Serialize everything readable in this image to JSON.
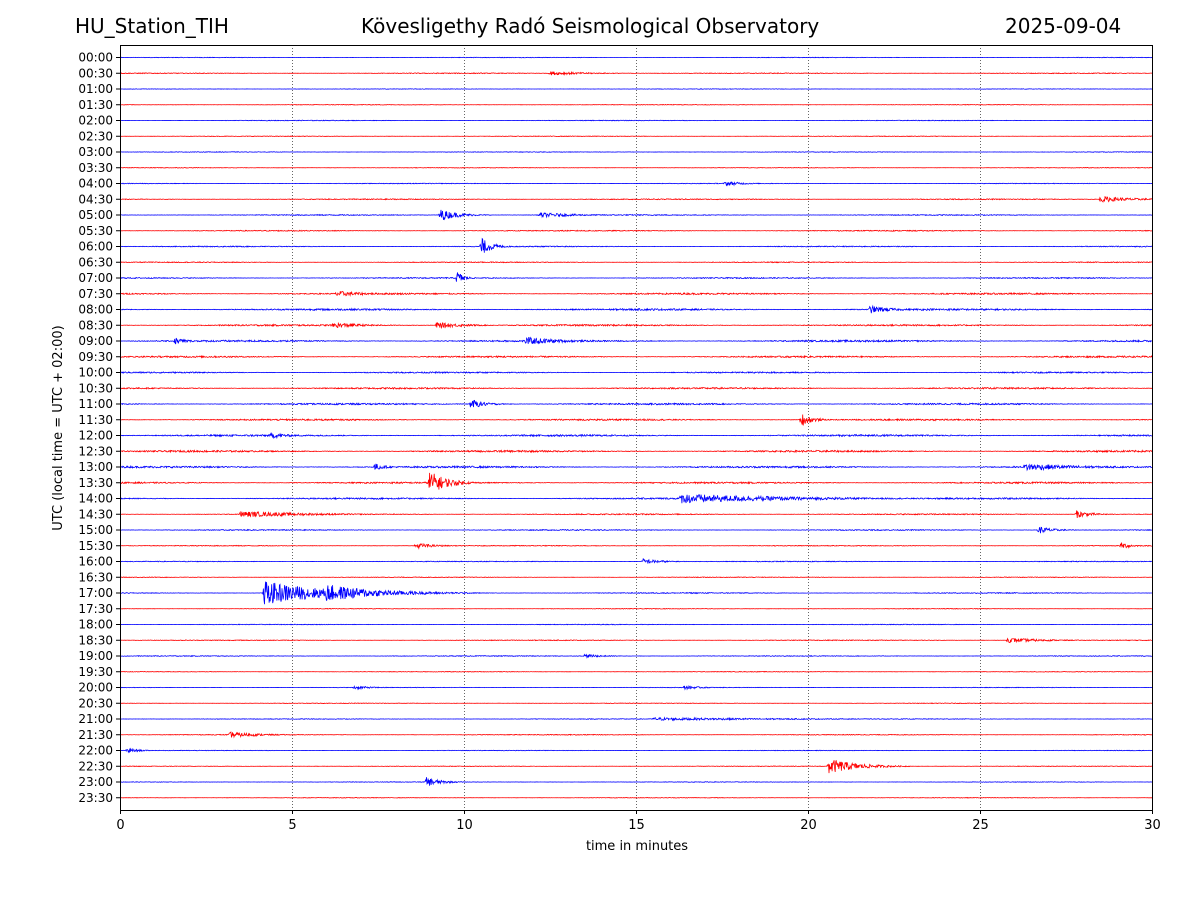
{
  "header": {
    "station": "HU_Station_TIH",
    "observatory": "Kövesligethy Radó Seismological Observatory",
    "date": "2025-09-04"
  },
  "chart_data": {
    "type": "line",
    "title": "Kövesligethy Radó Seismological Observatory",
    "xlabel": "time in minutes",
    "ylabel": "UTC (local time = UTC + 02:00)",
    "xlim": [
      0,
      30
    ],
    "xticks": [
      0,
      5,
      10,
      15,
      20,
      25,
      30
    ],
    "grid": "vertical dotted at 5-minute ticks",
    "colors": [
      "#0000ff",
      "#ff0000"
    ],
    "rows": [
      "00:00",
      "00:30",
      "01:00",
      "01:30",
      "02:00",
      "02:30",
      "03:00",
      "03:30",
      "04:00",
      "04:30",
      "05:00",
      "05:30",
      "06:00",
      "06:30",
      "07:00",
      "07:30",
      "08:00",
      "08:30",
      "09:00",
      "09:30",
      "10:00",
      "10:30",
      "11:00",
      "11:30",
      "12:00",
      "12:30",
      "13:00",
      "13:30",
      "14:00",
      "14:30",
      "15:00",
      "15:30",
      "16:00",
      "16:30",
      "17:00",
      "17:30",
      "18:00",
      "18:30",
      "19:00",
      "19:30",
      "20:00",
      "20:30",
      "21:00",
      "21:30",
      "22:00",
      "22:30",
      "23:00",
      "23:30"
    ],
    "noise": [
      0.3,
      0.4,
      0.25,
      0.3,
      0.35,
      0.3,
      0.3,
      0.3,
      0.35,
      0.5,
      0.5,
      0.5,
      0.5,
      0.45,
      0.55,
      0.8,
      0.9,
      0.8,
      0.9,
      0.8,
      0.7,
      0.8,
      0.8,
      0.8,
      0.9,
      0.9,
      0.9,
      0.8,
      0.8,
      0.6,
      0.5,
      0.4,
      0.4,
      0.35,
      0.5,
      0.3,
      0.35,
      0.4,
      0.4,
      0.3,
      0.3,
      0.3,
      0.35,
      0.4,
      0.3,
      0.3,
      0.3,
      0.3
    ],
    "events": [
      {
        "row": "00:30",
        "t": 12.5,
        "amp": 2,
        "dur": 1
      },
      {
        "row": "04:00",
        "t": 17.6,
        "amp": 2.5,
        "dur": 0.5
      },
      {
        "row": "04:30",
        "t": 28.5,
        "amp": 3,
        "dur": 1
      },
      {
        "row": "05:00",
        "t": 9.3,
        "amp": 6,
        "dur": 0.5
      },
      {
        "row": "05:00",
        "t": 12.2,
        "amp": 2.5,
        "dur": 1
      },
      {
        "row": "06:00",
        "t": 10.5,
        "amp": 9,
        "dur": 0.3
      },
      {
        "row": "07:00",
        "t": 9.8,
        "amp": 7,
        "dur": 0.2
      },
      {
        "row": "07:30",
        "t": 6.3,
        "amp": 3,
        "dur": 0.8
      },
      {
        "row": "08:00",
        "t": 21.8,
        "amp": 4,
        "dur": 0.6
      },
      {
        "row": "08:30",
        "t": 6.2,
        "amp": 3,
        "dur": 0.8
      },
      {
        "row": "08:30",
        "t": 9.2,
        "amp": 3,
        "dur": 0.8
      },
      {
        "row": "09:00",
        "t": 1.6,
        "amp": 4,
        "dur": 0.3
      },
      {
        "row": "09:00",
        "t": 11.8,
        "amp": 4,
        "dur": 1
      },
      {
        "row": "11:00",
        "t": 10.2,
        "amp": 5,
        "dur": 0.4
      },
      {
        "row": "11:30",
        "t": 19.8,
        "amp": 7,
        "dur": 0.3
      },
      {
        "row": "12:00",
        "t": 4.4,
        "amp": 3,
        "dur": 0.5
      },
      {
        "row": "13:00",
        "t": 7.4,
        "amp": 4,
        "dur": 0.3
      },
      {
        "row": "13:00",
        "t": 26.3,
        "amp": 4,
        "dur": 1.5
      },
      {
        "row": "13:30",
        "t": 9.0,
        "amp": 12,
        "dur": 0.5
      },
      {
        "row": "14:00",
        "t": 16.3,
        "amp": 5,
        "dur": 3
      },
      {
        "row": "14:30",
        "t": 3.5,
        "amp": 3,
        "dur": 2
      },
      {
        "row": "14:30",
        "t": 27.8,
        "amp": 4,
        "dur": 0.4
      },
      {
        "row": "15:00",
        "t": 26.7,
        "amp": 4,
        "dur": 0.4
      },
      {
        "row": "15:30",
        "t": 8.6,
        "amp": 3,
        "dur": 0.5
      },
      {
        "row": "15:30",
        "t": 29.1,
        "amp": 3.5,
        "dur": 0.3
      },
      {
        "row": "16:00",
        "t": 15.2,
        "amp": 3,
        "dur": 0.5
      },
      {
        "row": "17:00",
        "t": 4.2,
        "amp": 12,
        "dur": 1.8
      },
      {
        "row": "17:00",
        "t": 6.0,
        "amp": 9,
        "dur": 1.5
      },
      {
        "row": "18:30",
        "t": 25.8,
        "amp": 2.5,
        "dur": 1
      },
      {
        "row": "19:00",
        "t": 13.5,
        "amp": 2,
        "dur": 0.5
      },
      {
        "row": "20:00",
        "t": 6.8,
        "amp": 2,
        "dur": 0.5
      },
      {
        "row": "20:00",
        "t": 16.4,
        "amp": 2,
        "dur": 0.5
      },
      {
        "row": "21:00",
        "t": 15.5,
        "amp": 1.5,
        "dur": 4
      },
      {
        "row": "21:30",
        "t": 3.2,
        "amp": 3,
        "dur": 0.8
      },
      {
        "row": "22:00",
        "t": 0.2,
        "amp": 3,
        "dur": 0.3
      },
      {
        "row": "22:30",
        "t": 20.6,
        "amp": 8,
        "dur": 0.8
      },
      {
        "row": "23:00",
        "t": 8.9,
        "amp": 5,
        "dur": 0.4
      }
    ]
  }
}
